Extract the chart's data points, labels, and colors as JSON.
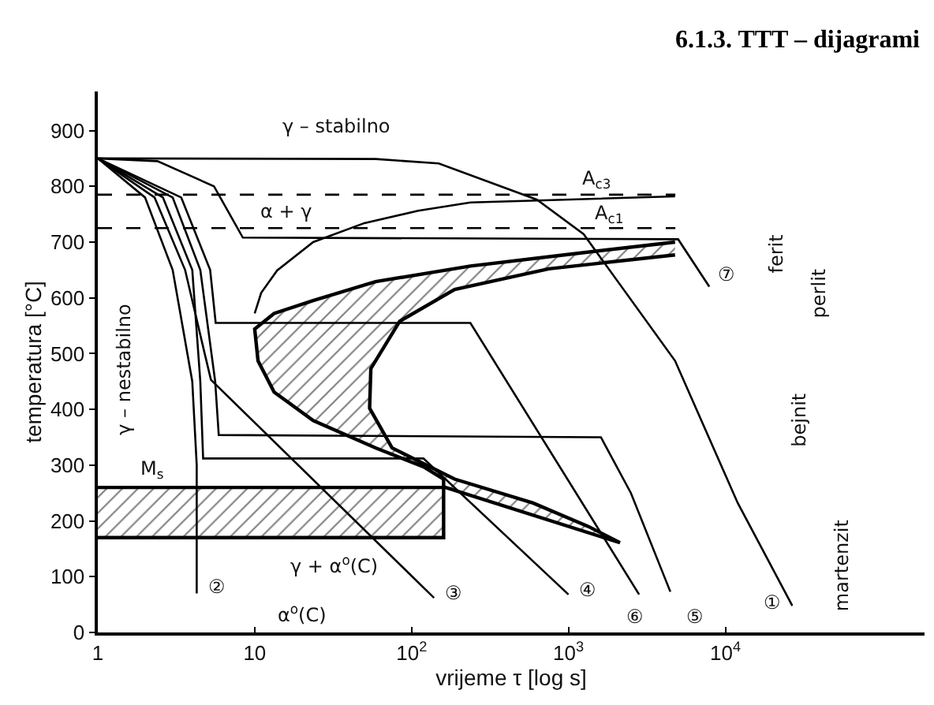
{
  "chart_data": {
    "type": "line",
    "title": "6.1.3. TTT – dijagrami",
    "xlabel": "vrijeme τ [log s]",
    "ylabel": "temperatura [°C]",
    "log": "x",
    "xlim": [
      1,
      186000
    ],
    "ylim": [
      0,
      970
    ],
    "xticks": [
      1,
      10,
      {
        "value": 100,
        "label": "10$^{2}$"
      },
      {
        "value": 1000,
        "label": "10$^{3}$"
      },
      {
        "value": 10000,
        "label": "10$^{4}$"
      }
    ],
    "yticks": [
      0,
      100,
      200,
      300,
      400,
      500,
      600,
      700,
      800,
      900
    ],
    "marker": "none",
    "series": [
      {
        "type": "area",
        "color": "#000000",
        "line_style": "solid",
        "x": [
          4780,
          940,
          237,
          59,
          23.6,
          13.3,
          10,
          10.5,
          13.3,
          23.6,
          59,
          119,
          160,
          160,
          2130,
          1340,
          595,
          188,
          75,
          54,
          55,
          84,
          188,
          750,
          4780
        ],
        "values": [
          700,
          677,
          657,
          629,
          595,
          572,
          544,
          487,
          431,
          380,
          331,
          297,
          275,
          261,
          161,
          190,
          232,
          275,
          331,
          402,
          473,
          558,
          615,
          652,
          677
        ]
      },
      {
        "type": "area",
        "color": "#000000",
        "line_style": "solid",
        "x": [
          1,
          160,
          160,
          1
        ],
        "values": [
          260,
          260,
          170,
          170
        ]
      },
      {
        "color": "#000000",
        "line_style": "solid",
        "x": [
          10,
          11,
          13.9,
          23.6,
          50,
          110,
          237,
          940,
          4780
        ],
        "values": [
          572,
          609,
          649,
          700,
          734,
          756,
          771,
          776,
          782
        ]
      },
      {
        "color": "#000000",
        "line_style": "dashed",
        "x": [
          1,
          4800
        ],
        "values": [
          785,
          785
        ]
      },
      {
        "color": "#000000",
        "line_style": "dashed",
        "x": [
          1,
          4800
        ],
        "values": [
          725,
          725
        ]
      },
      {
        "color": "#000000",
        "line_style": "solid",
        "x": [
          1,
          59,
          149,
          630,
          1250,
          4780,
          12000,
          26700
        ],
        "values": [
          850,
          849,
          841,
          776,
          714,
          487,
          232,
          48
        ]
      },
      {
        "color": "#000000",
        "line_style": "solid",
        "x": [
          1,
          2.0,
          3.0,
          4.0,
          4.27,
          4.27
        ],
        "values": [
          850,
          780,
          650,
          450,
          300,
          70
        ]
      },
      {
        "color": "#000000",
        "line_style": "solid",
        "x": [
          1,
          2.3,
          3.6,
          4.8,
          5.26,
          139
        ],
        "values": [
          850,
          780,
          650,
          500,
          453,
          62
        ]
      },
      {
        "color": "#000000",
        "line_style": "solid",
        "x": [
          1,
          2.6,
          4.0,
          4.5,
          4.69,
          119,
          1000
        ],
        "values": [
          850,
          780,
          650,
          450,
          312,
          312,
          68
        ]
      },
      {
        "color": "#000000",
        "line_style": "solid",
        "x": [
          1,
          3.0,
          4.5,
          5.6,
          5.9,
          1610,
          2500,
          4460
        ],
        "values": [
          850,
          780,
          650,
          450,
          354,
          350,
          250,
          73
        ]
      },
      {
        "color": "#000000",
        "line_style": "solid",
        "x": [
          1,
          3.4,
          5.2,
          5.64,
          237,
          2820
        ],
        "values": [
          850,
          780,
          650,
          555,
          555,
          68
        ]
      },
      {
        "color": "#000000",
        "line_style": "solid",
        "x": [
          1,
          2.4,
          5.5,
          8.4,
          5000,
          7900
        ],
        "values": [
          850,
          845,
          800,
          708,
          705,
          620
        ]
      }
    ],
    "annotations": [
      "γ – stabilno",
      "α + γ",
      "γ – nestabilno",
      "A$_{c3}$",
      "A$_{c1}$",
      "M$_{s}$",
      "γ + α$^{o}$(C)",
      "α$^{o}$(C)",
      "②",
      "③",
      "④",
      "⑥",
      "⑤",
      "①",
      "⑦",
      "ferit",
      "perlit",
      "bejnit",
      "martenzit"
    ]
  }
}
